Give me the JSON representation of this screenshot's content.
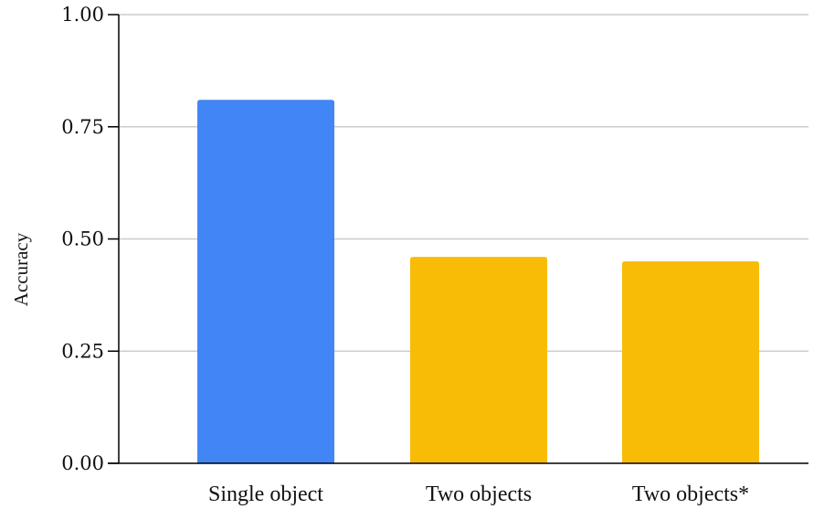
{
  "chart_data": {
    "type": "bar",
    "categories": [
      "Single object",
      "Two objects",
      "Two objects*"
    ],
    "values": [
      0.81,
      0.46,
      0.45
    ],
    "bar_colors": [
      "#4285F4",
      "#F9BC06",
      "#F9BC06"
    ],
    "ylabel": "Accuracy",
    "xlabel": "",
    "ylim": [
      0,
      1
    ],
    "yticks": [
      0,
      0.25,
      0.5,
      0.75,
      1.0
    ],
    "ytick_labels": [
      "0.00",
      "0.25",
      "0.50",
      "0.75",
      "1.00"
    ],
    "grid": true,
    "grid_color": "#cccccc",
    "axis_color": "#000000"
  }
}
